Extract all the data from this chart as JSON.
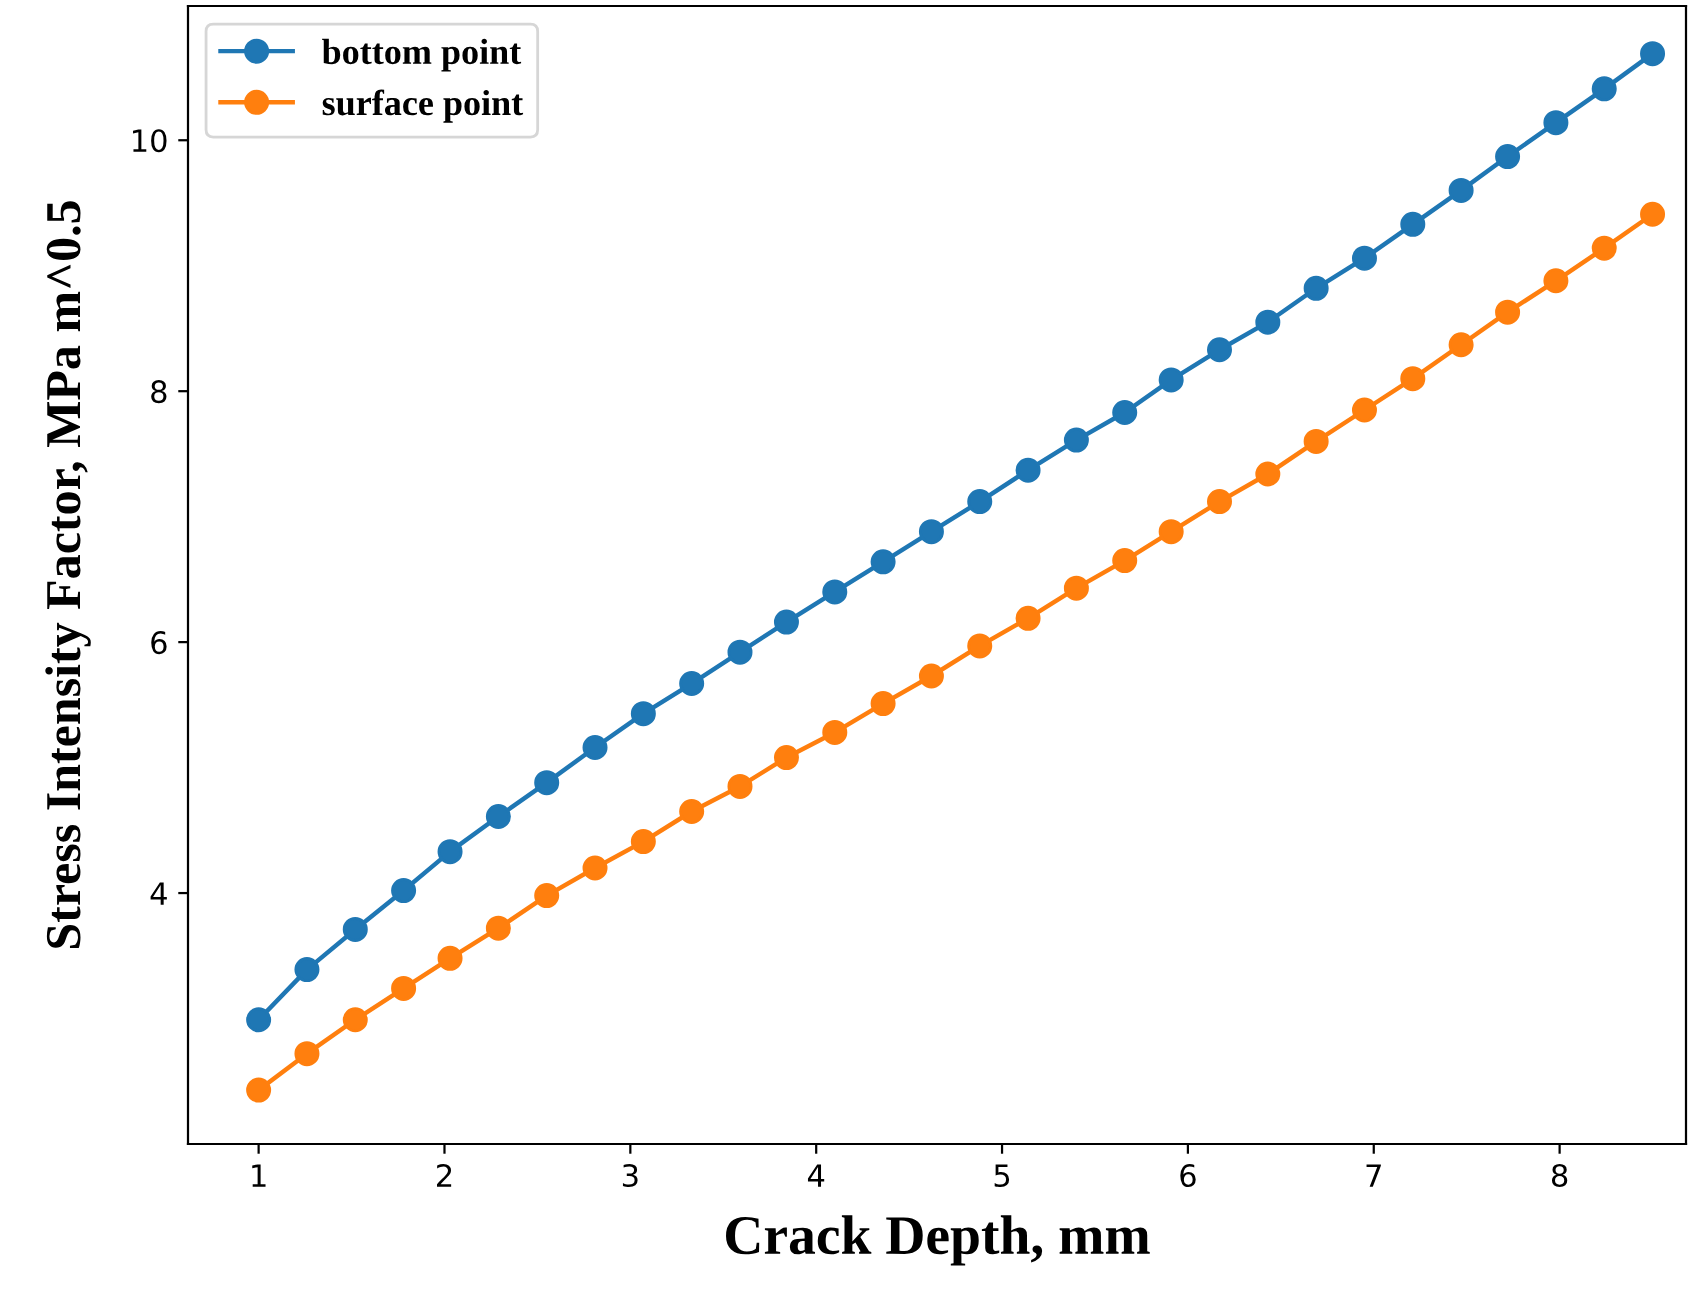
{
  "chart_data": {
    "type": "line",
    "xlabel": "Crack Depth, mm",
    "ylabel": "Stress Intensity Factor, MPa m^0.5",
    "x": [
      1,
      1.26,
      1.52,
      1.78,
      2.03,
      2.29,
      2.55,
      2.81,
      3.07,
      3.33,
      3.59,
      3.84,
      4.1,
      4.36,
      4.62,
      4.88,
      5.14,
      5.4,
      5.66,
      5.91,
      6.17,
      6.43,
      6.69,
      6.95,
      7.21,
      7.47,
      7.72,
      7.98,
      8.24,
      8.5
    ],
    "series": [
      {
        "name": "bottom point",
        "color": "#1f77b4",
        "values": [
          2.99,
          3.39,
          3.71,
          4.02,
          4.33,
          4.61,
          4.88,
          5.16,
          5.43,
          5.67,
          5.92,
          6.16,
          6.4,
          6.64,
          6.88,
          7.12,
          7.37,
          7.61,
          7.83,
          8.09,
          8.33,
          8.55,
          8.82,
          9.06,
          9.33,
          9.6,
          9.87,
          10.14,
          10.41,
          10.69
        ]
      },
      {
        "name": "surface point",
        "color": "#ff7f0e",
        "values": [
          2.43,
          2.72,
          2.99,
          3.24,
          3.48,
          3.72,
          3.98,
          4.2,
          4.41,
          4.65,
          4.85,
          5.08,
          5.28,
          5.51,
          5.73,
          5.97,
          6.19,
          6.43,
          6.65,
          6.88,
          7.12,
          7.34,
          7.6,
          7.85,
          8.1,
          8.37,
          8.63,
          8.88,
          9.14,
          9.41
        ]
      }
    ],
    "xlim": [
      0.62,
      8.68
    ],
    "xticks": [
      1,
      2,
      3,
      4,
      5,
      6,
      7,
      8
    ],
    "ylim": [
      2.0,
      11.07
    ],
    "yticks": [
      4,
      6,
      8,
      10
    ],
    "marker": "circle",
    "line_style": "solid",
    "grid": false,
    "legend": "top left"
  }
}
